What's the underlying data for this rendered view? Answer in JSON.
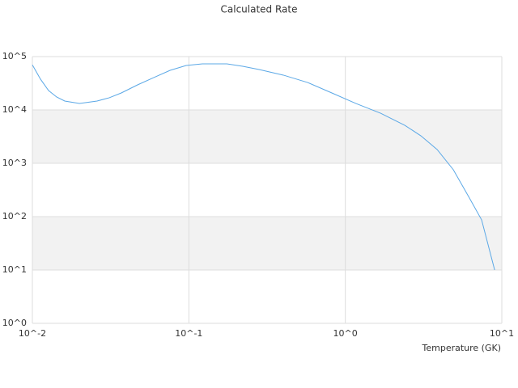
{
  "chart_data": {
    "type": "line",
    "title": "Calculated Rate",
    "x_label": "Temperature (GK)",
    "xlog": true,
    "ylog": true,
    "grid": true,
    "banded": true,
    "xlim": [
      0.01,
      10
    ],
    "ylim": [
      1,
      100000
    ],
    "xticks": [
      {
        "value": 0.01,
        "label": "10^-2"
      },
      {
        "value": 0.1,
        "label": "10^-1"
      },
      {
        "value": 1,
        "label": "10^0"
      },
      {
        "value": 10,
        "label": "10^1"
      }
    ],
    "yticks": [
      {
        "value": 1,
        "label": "10^0"
      },
      {
        "value": 10,
        "label": "10^1"
      },
      {
        "value": 100,
        "label": "10^2"
      },
      {
        "value": 1000,
        "label": "10^3"
      },
      {
        "value": 10000,
        "label": "10^4"
      },
      {
        "value": 100000,
        "label": "10^5"
      }
    ],
    "series": [
      {
        "color": "#5ba8e6",
        "x": [
          0.01,
          0.01127,
          0.01269,
          0.01429,
          0.0161,
          0.02,
          0.0259,
          0.031,
          0.037,
          0.047,
          0.0597,
          0.0759,
          0.0962,
          0.122,
          0.175,
          0.221,
          0.281,
          0.402,
          0.574,
          0.82,
          1.17,
          1.68,
          2.4,
          3.04,
          3.86,
          4.9,
          6.21,
          7.43,
          9.0
        ],
        "values": [
          70000,
          37700,
          23100,
          17500,
          14700,
          13200,
          14700,
          16900,
          20800,
          29500,
          40400,
          55200,
          68100,
          73100,
          73100,
          65800,
          57200,
          44900,
          32700,
          20800,
          13200,
          8690,
          5150,
          3270,
          1810,
          757,
          223,
          86.9,
          10
        ]
      }
    ]
  }
}
